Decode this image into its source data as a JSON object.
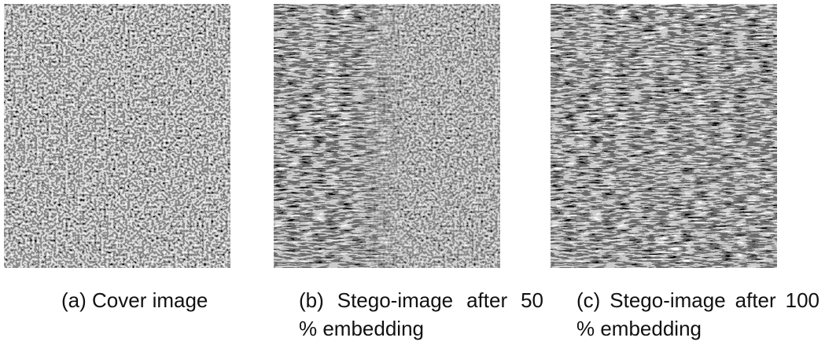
{
  "figures": [
    {
      "caption": "(a) Cover image"
    },
    {
      "caption": "(b) Stego-image after 50 % embedding"
    },
    {
      "caption": "(c) Stego-image after 100 % embedding"
    }
  ]
}
